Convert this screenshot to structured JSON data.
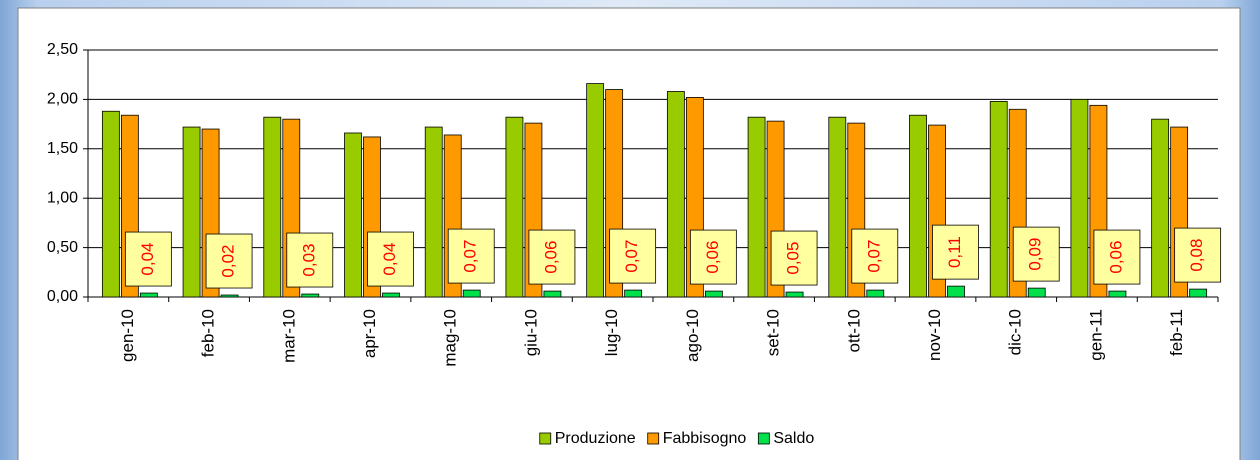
{
  "chart_data": {
    "type": "bar",
    "categories": [
      "gen-10",
      "feb-10",
      "mar-10",
      "apr-10",
      "mag-10",
      "giu-10",
      "lug-10",
      "ago-10",
      "set-10",
      "ott-10",
      "nov-10",
      "dic-10",
      "gen-11",
      "feb-11"
    ],
    "series": [
      {
        "name": "Produzione",
        "color": "#99cc00",
        "values": [
          1.88,
          1.72,
          1.82,
          1.66,
          1.72,
          1.82,
          2.16,
          2.08,
          1.82,
          1.82,
          1.84,
          1.98,
          2.0,
          1.8
        ]
      },
      {
        "name": "Fabbisogno",
        "color": "#ff9900",
        "values": [
          1.84,
          1.7,
          1.8,
          1.62,
          1.64,
          1.76,
          2.1,
          2.02,
          1.78,
          1.76,
          1.74,
          1.9,
          1.94,
          1.72
        ]
      },
      {
        "name": "Saldo",
        "color": "#00e04a",
        "values": [
          0.04,
          0.02,
          0.03,
          0.04,
          0.07,
          0.06,
          0.07,
          0.06,
          0.05,
          0.07,
          0.11,
          0.09,
          0.06,
          0.08
        ],
        "value_labels": [
          "0,04",
          "0,02",
          "0,03",
          "0,04",
          "0,07",
          "0,06",
          "0,07",
          "0,06",
          "0,05",
          "0,07",
          "0,11",
          "0,09",
          "0,06",
          "0,08"
        ]
      }
    ],
    "ylim": [
      0,
      2.5
    ],
    "yticks": [
      {
        "value": 0,
        "label": "0,00"
      },
      {
        "value": 0.5,
        "label": "0,50"
      },
      {
        "value": 1,
        "label": "1,00"
      },
      {
        "value": 1.5,
        "label": "1,50"
      },
      {
        "value": 2,
        "label": "2,00"
      },
      {
        "value": 2.5,
        "label": "2,50"
      }
    ],
    "grid": true,
    "legend": "bottom"
  }
}
